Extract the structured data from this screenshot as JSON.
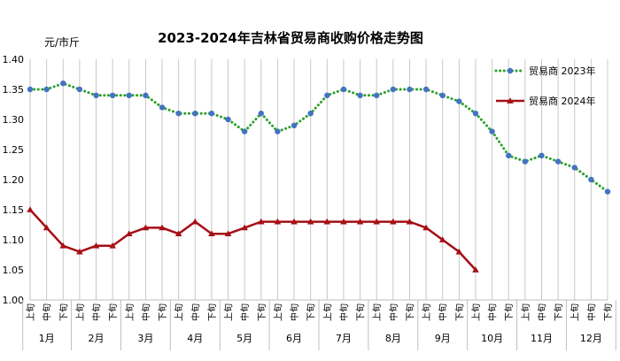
{
  "chart_data": {
    "type": "line",
    "title": "2023-2024年吉林省贸易商收购价格走势图",
    "ylabel": "元/市斤",
    "ylim": [
      1.0,
      1.4
    ],
    "y_ticks": [
      "1.00",
      "1.05",
      "1.10",
      "1.15",
      "1.20",
      "1.25",
      "1.30",
      "1.35",
      "1.40"
    ],
    "grid": "vertical",
    "legend_position": "top-right",
    "months": [
      "1月",
      "2月",
      "3月",
      "4月",
      "5月",
      "6月",
      "7月",
      "8月",
      "9月",
      "10月",
      "11月",
      "12月"
    ],
    "periods": [
      "上旬",
      "中旬",
      "下旬"
    ],
    "series": [
      {
        "name": "贸易商 2023年",
        "color": "#2ca02c",
        "marker_color": "#4472c4",
        "style": "dotted",
        "marker": "circle",
        "values": [
          1.35,
          1.35,
          1.36,
          1.35,
          1.34,
          1.34,
          1.34,
          1.34,
          1.32,
          1.31,
          1.31,
          1.31,
          1.3,
          1.28,
          1.31,
          1.28,
          1.29,
          1.31,
          1.34,
          1.35,
          1.34,
          1.34,
          1.35,
          1.35,
          1.35,
          1.34,
          1.33,
          1.31,
          1.28,
          1.24,
          1.23,
          1.24,
          1.23,
          1.22,
          1.2,
          1.18
        ]
      },
      {
        "name": "贸易商 2024年",
        "color": "#a50f15",
        "marker_color": "#a50f15",
        "style": "solid",
        "marker": "triangle",
        "values": [
          1.15,
          1.12,
          1.09,
          1.08,
          1.09,
          1.09,
          1.11,
          1.12,
          1.12,
          1.11,
          1.13,
          1.11,
          1.11,
          1.12,
          1.13,
          1.13,
          1.13,
          1.13,
          1.13,
          1.13,
          1.13,
          1.13,
          1.13,
          1.13,
          1.12,
          1.1,
          1.08,
          1.05
        ]
      }
    ]
  }
}
